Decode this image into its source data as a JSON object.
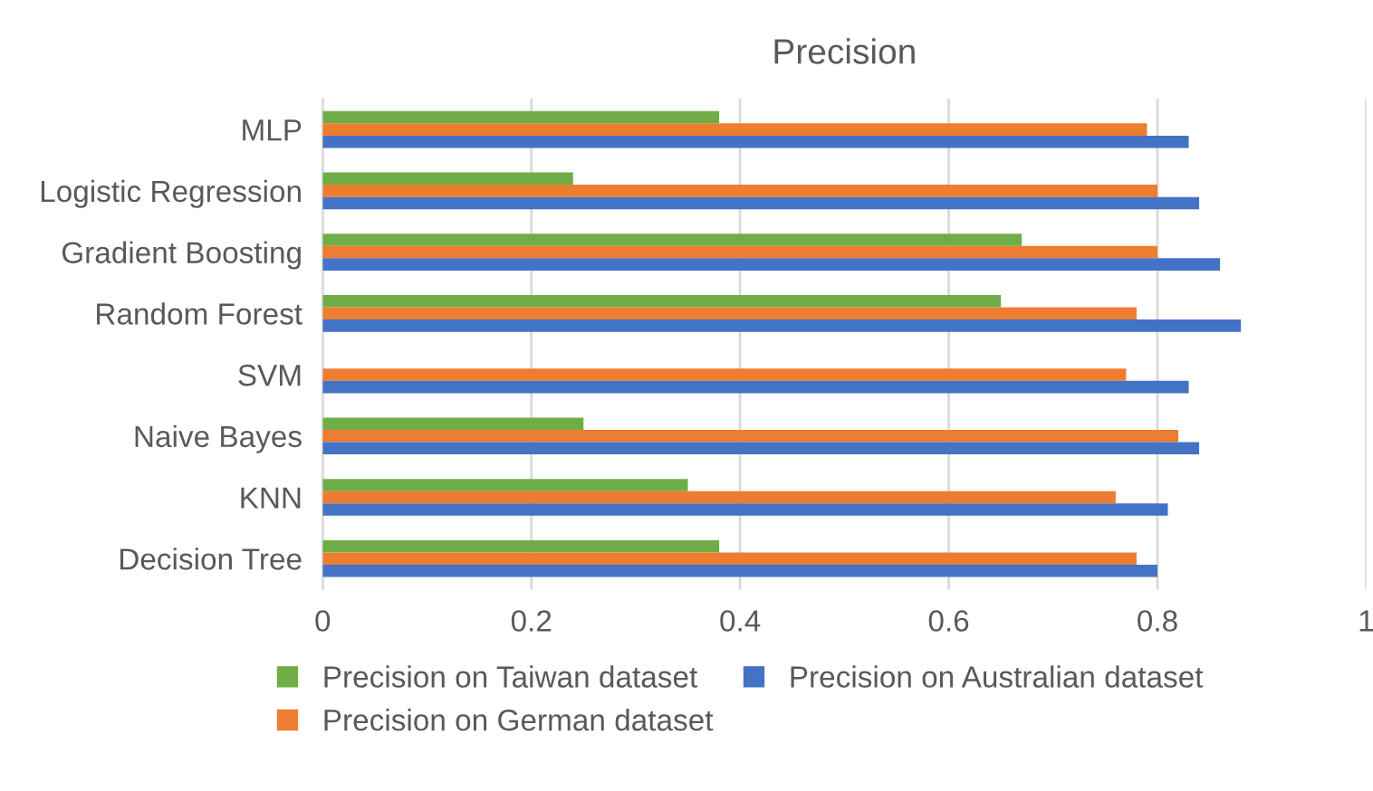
{
  "chart_data": {
    "type": "bar",
    "orientation": "horizontal",
    "title": "Precision",
    "categories": [
      "MLP",
      "Logistic Regression",
      "Gradient Boosting",
      "Random Forest",
      "SVM",
      "Naive Bayes",
      "KNN",
      "Decision Tree"
    ],
    "series": [
      {
        "name": "Precision on Taiwan dataset",
        "color": "#70ad47",
        "values": [
          0.38,
          0.24,
          0.67,
          0.65,
          null,
          0.25,
          0.35,
          0.38
        ]
      },
      {
        "name": "Precision on German dataset",
        "color": "#ed7d31",
        "values": [
          0.79,
          0.8,
          0.8,
          0.78,
          0.77,
          0.82,
          0.76,
          0.78
        ]
      },
      {
        "name": "Precision on Australian dataset",
        "color": "#4472c4",
        "values": [
          0.83,
          0.84,
          0.86,
          0.88,
          0.83,
          0.84,
          0.81,
          0.8
        ]
      }
    ],
    "xlim": [
      0,
      1
    ],
    "xticks": [
      0,
      0.2,
      0.4,
      0.6,
      0.8,
      1
    ],
    "grid": "x",
    "legend": "bottom"
  }
}
